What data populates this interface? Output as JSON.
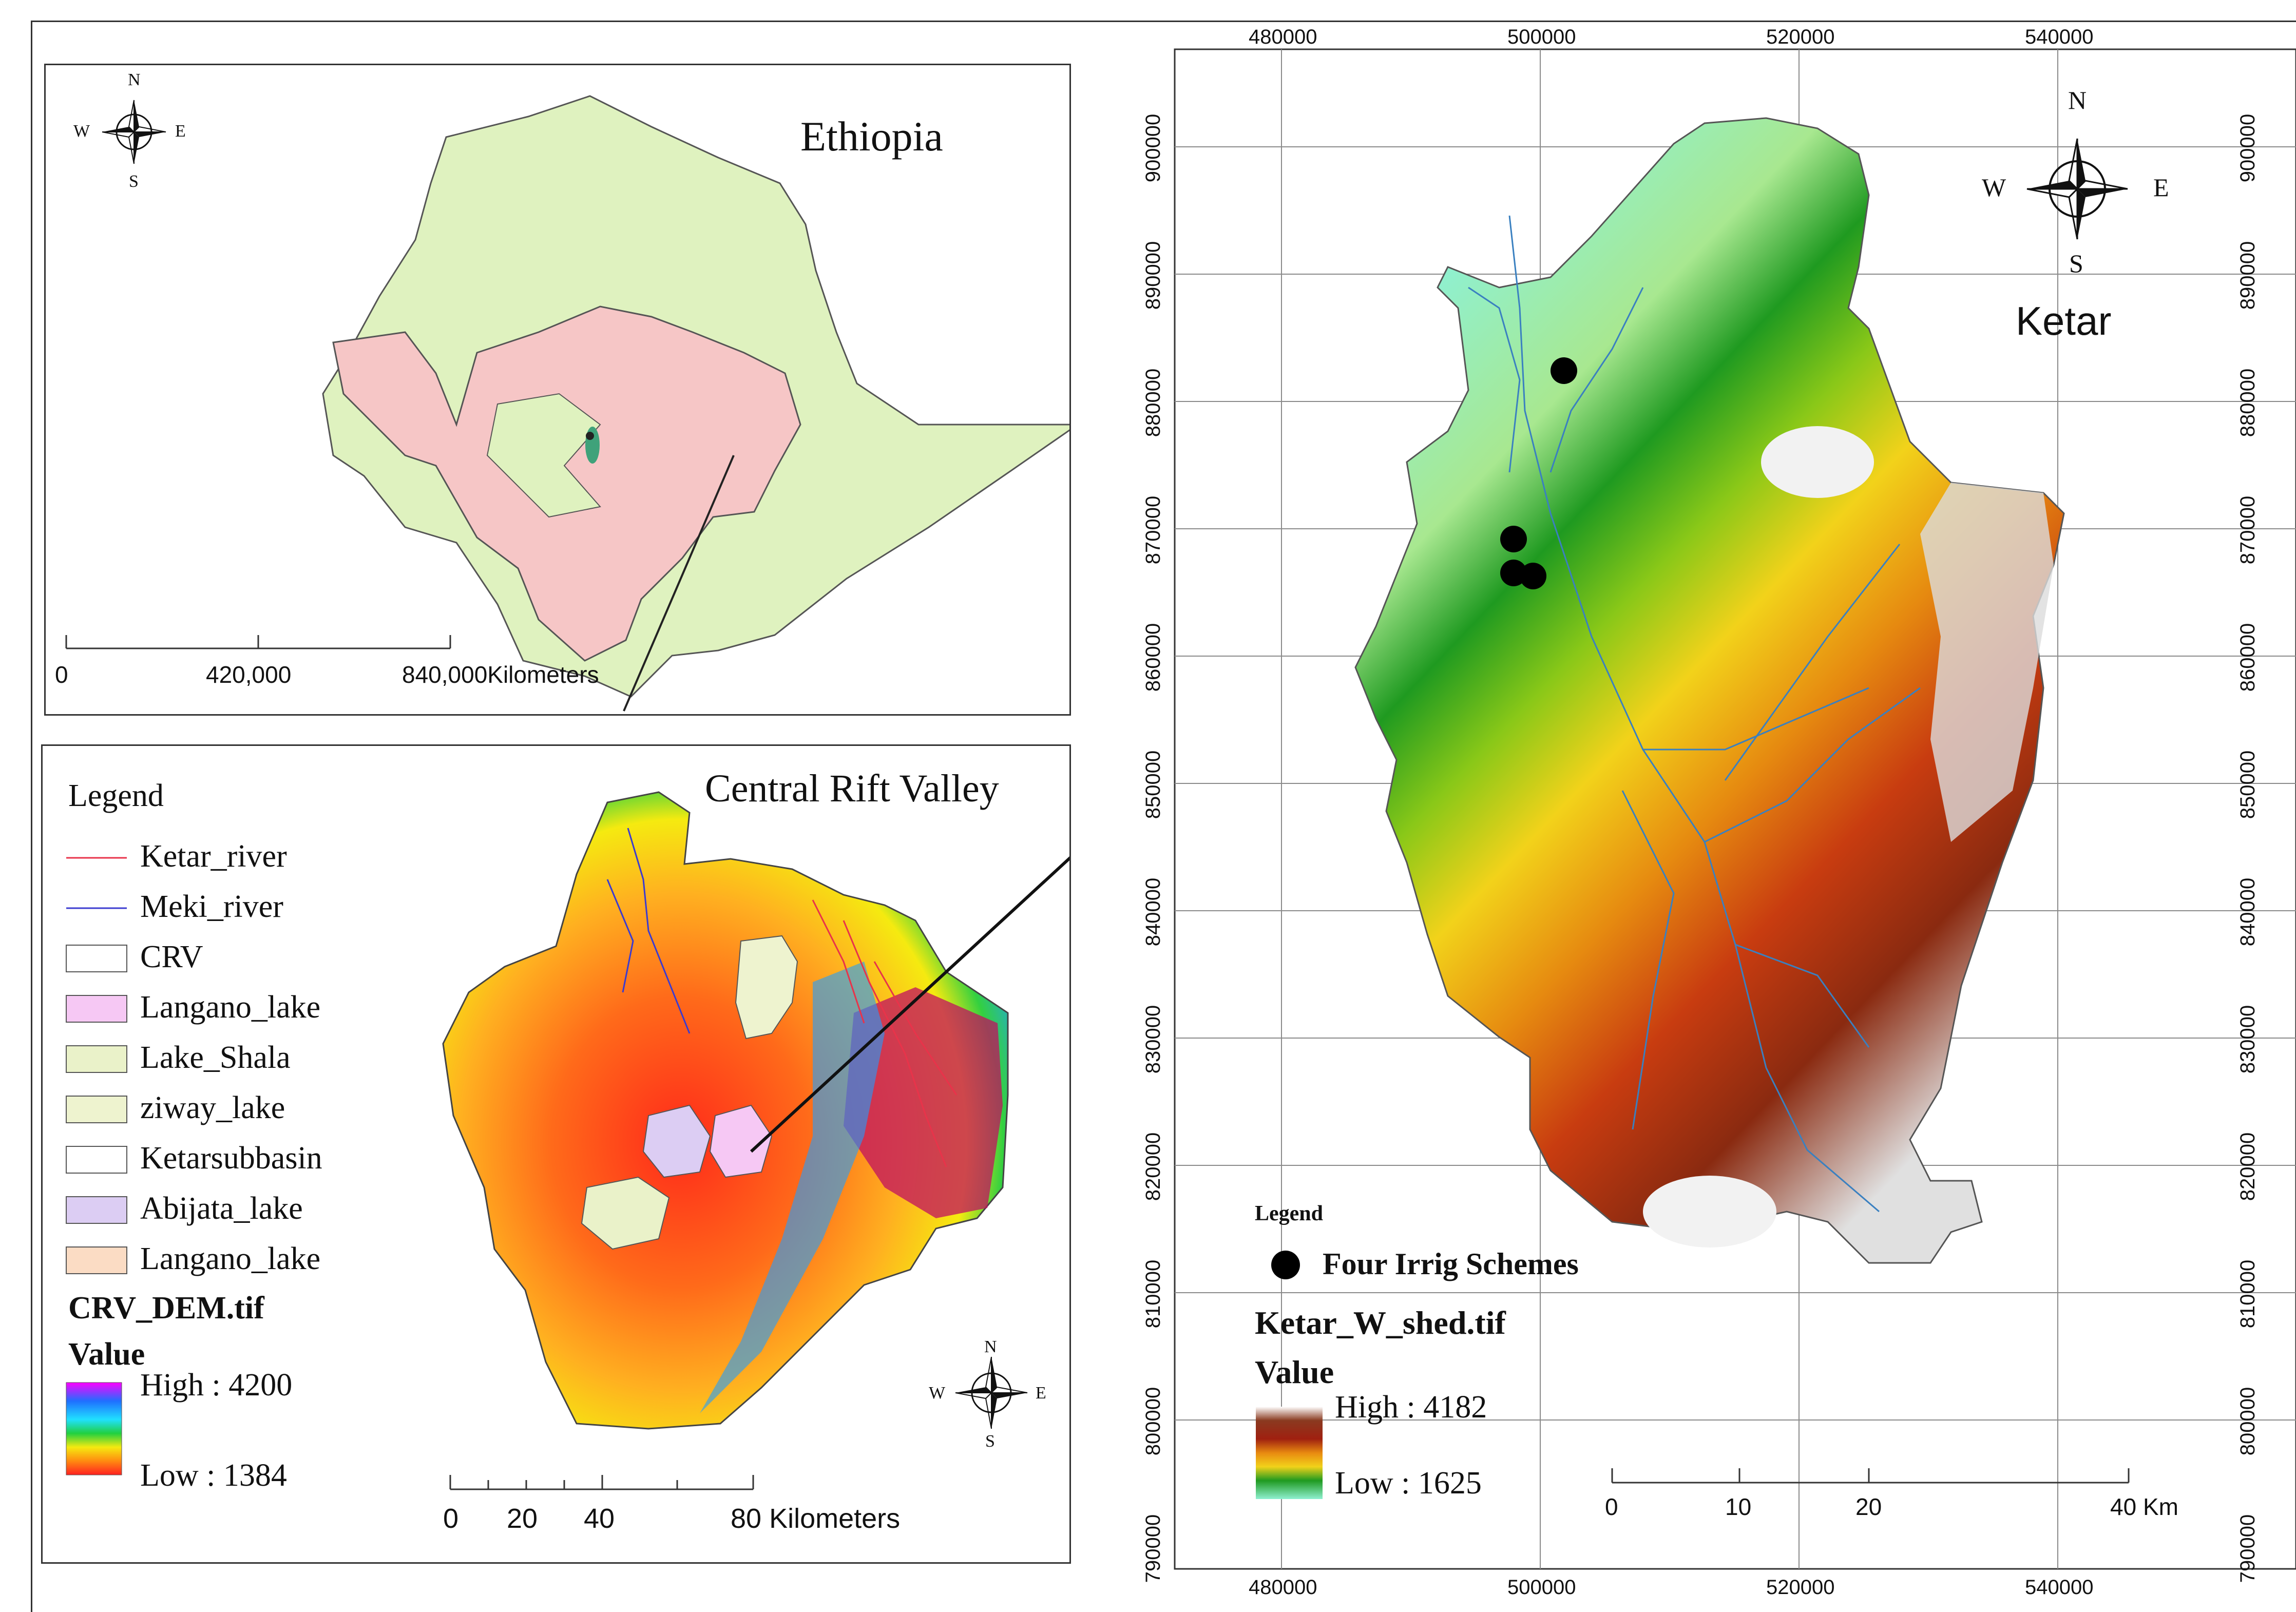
{
  "ethiopia_panel": {
    "title": "Ethiopia",
    "scale_labels": [
      "0",
      "420,000",
      "840,000"
    ],
    "scale_unit": "Kilometers"
  },
  "crv_panel": {
    "title": "Central Rift Valley",
    "legend_title": "Legend",
    "legend_items": [
      {
        "label": "Ketar_river",
        "color": "#e8334a",
        "kind": "line"
      },
      {
        "label": "Meki_river",
        "color": "#3b3bd0",
        "kind": "line"
      },
      {
        "label": "CRV",
        "color": "#ffffff",
        "kind": "box"
      },
      {
        "label": "Langano_lake",
        "color": "#f6c8f4",
        "kind": "box"
      },
      {
        "label": "Lake_Shala",
        "color": "#eaf2c9",
        "kind": "box"
      },
      {
        "label": "ziway_lake",
        "color": "#eef3cf",
        "kind": "box"
      },
      {
        "label": "Ketarsubbasin",
        "color": "#ffffff",
        "kind": "box"
      },
      {
        "label": "Abijata_lake",
        "color": "#dccdf3",
        "kind": "box"
      },
      {
        "label": "Langano_lake",
        "color": "#fbdcc4",
        "kind": "box"
      }
    ],
    "raster_name": "CRV_DEM.tif",
    "value_label": "Value",
    "high_label": "High : 4200",
    "low_label": "Low : 1384",
    "scale_labels": [
      "0",
      "20",
      "40",
      "80 Kilometers"
    ]
  },
  "ketar_panel": {
    "title": "Ketar",
    "x_ticks": [
      "480000",
      "500000",
      "520000",
      "540000"
    ],
    "y_ticks": [
      "900000",
      "890000",
      "880000",
      "870000",
      "860000",
      "850000",
      "840000",
      "830000",
      "820000",
      "810000",
      "800000",
      "790000"
    ],
    "legend_title": "Legend",
    "point_label": "Four Irrig Schemes",
    "raster_name": "Ketar_W_shed.tif",
    "value_label": "Value",
    "high_label": "High : 4182",
    "low_label": "Low : 1625",
    "scale_labels": [
      "0",
      "10",
      "20",
      "40 Km"
    ]
  },
  "compass": {
    "n": "N",
    "s": "S",
    "e": "E",
    "w": "W"
  }
}
